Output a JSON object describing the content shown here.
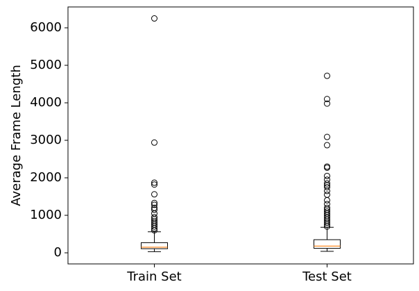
{
  "chart_data": {
    "type": "box",
    "ylabel": "Average Frame Length",
    "categories": [
      "Train Set",
      "Test Set"
    ],
    "boxes": [
      {
        "whislo": 30,
        "q1": 110,
        "med": 150,
        "q3": 270,
        "whishi": 560,
        "fliers": [
          6250,
          2940,
          1870,
          1820,
          1560,
          1330,
          1280,
          1200,
          1150,
          1050,
          950,
          900,
          850,
          800,
          750,
          700,
          650,
          600
        ]
      },
      {
        "whislo": 40,
        "q1": 120,
        "med": 180,
        "q3": 350,
        "whishi": 680,
        "fliers": [
          4720,
          4100,
          3980,
          3090,
          2870,
          2300,
          2270,
          2050,
          1950,
          1850,
          1800,
          1750,
          1650,
          1550,
          1400,
          1300,
          1200,
          1150,
          1100,
          1050,
          1000,
          950,
          900,
          850,
          800,
          750,
          700
        ]
      }
    ],
    "median_color": "#ff7f0e",
    "ylim": [
      -296,
      6556
    ],
    "yticks": [
      0,
      1000,
      2000,
      3000,
      4000,
      5000,
      6000
    ]
  }
}
